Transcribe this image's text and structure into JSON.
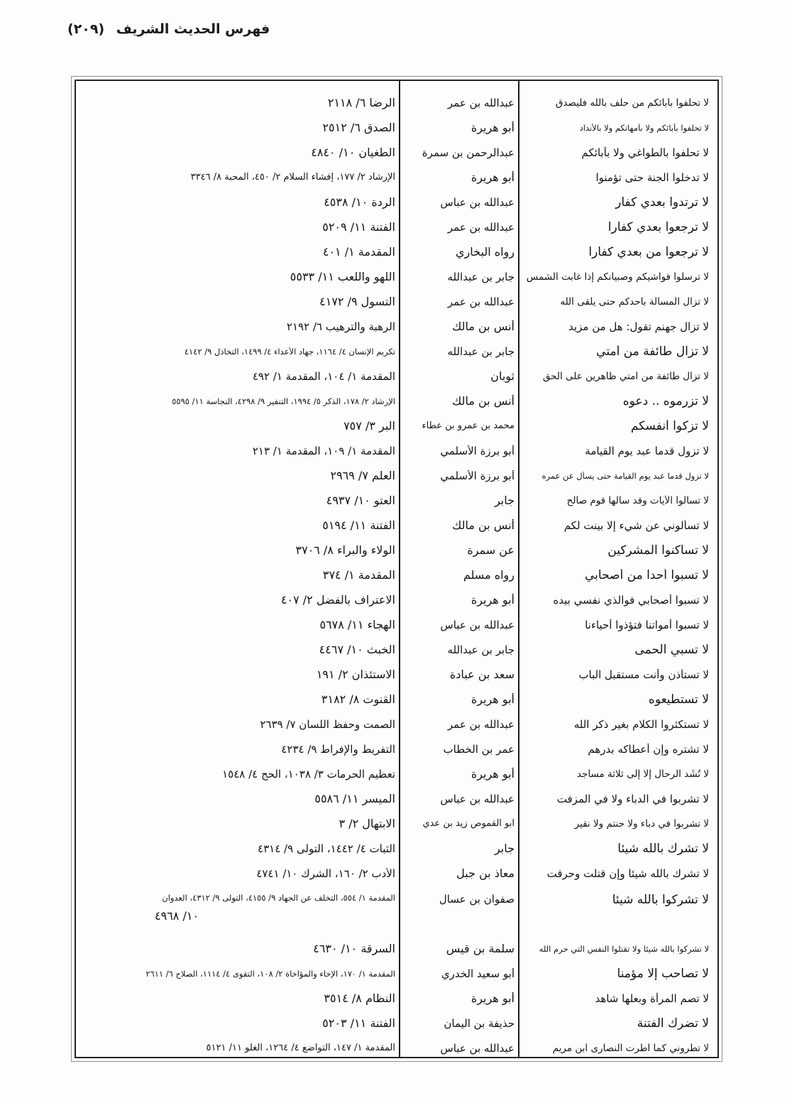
{
  "page_header": {
    "title": "فهرس الحديث الشريف",
    "page_number": "(٢٠٩)"
  },
  "table": {
    "rows": [
      {
        "hadith": "لا تحلفوا بآبائكم من حلف بالله فليصدق",
        "narrator": "عبدالله بن عمر",
        "reference": "الرضا ٦/ ٢١١٨"
      },
      {
        "hadith": "لا تحلفوا بآبائكم ولا بأمهاتكم ولا بالأنداد",
        "narrator": "أبو هريرة",
        "reference": "الصدق ٦/ ٢٥١٢"
      },
      {
        "hadith": "لا تحلفوا بالطواغي ولا بآبائكم",
        "narrator": "عبدالرحمن بن سمرة",
        "reference": "الطغيان ١٠/ ٤٨٤٠"
      },
      {
        "hadith": "لا تدخلوا الجنة حتى تؤمنوا",
        "narrator": "أبو هريرة",
        "reference": "الإرشاد ٢/ ١٧٧، إفشاء السلام ٢/ ٤٥٠، المحبة ٨/ ٣٣٤٦"
      },
      {
        "hadith": "لا ترتدوا بعدي كفار",
        "narrator": "عبدالله بن عباس",
        "reference": "الردة ١٠/ ٤٥٣٨"
      },
      {
        "hadith": "لا ترجعوا بعدي كفارا",
        "narrator": "عبدالله بن عمر",
        "reference": "الفتنة ١١/ ٥٢٠٩"
      },
      {
        "hadith": "لا ترجعوا من بعدي كفارا",
        "narrator": "رواه البخاري",
        "reference": "المقدمة ١/ ٤٠١"
      },
      {
        "hadith": "لا ترسلوا فواشيكم وصبيانكم إذا غابت الشمس",
        "narrator": "جابر بن عبدالله",
        "reference": "اللهو واللعب ١١/ ٥٥٣٣"
      },
      {
        "hadith": "لا تزال المسألة بأحدكم حتى يلقى الله",
        "narrator": "عبدالله بن عمر",
        "reference": "التسول ٩/ ٤١٧٢"
      },
      {
        "hadith": "لا تزال جهنم تقول: هل من مزيد",
        "narrator": "أنس بن مالك",
        "reference": "الرهبة والترهيب ٦/ ٢١٩٢"
      },
      {
        "hadith": "لا تزال طائفة من أمتي",
        "narrator": "جابر بن عبدالله",
        "reference": "تكريم الإنسان ٤/ ١١٦٤، جهاد الأعداء ٤/ ١٤٩٩، التخاذل ٩/ ٤١٤٢"
      },
      {
        "hadith": "لا تزال طائفة من أمتي ظاهرين على الحق",
        "narrator": "ثوبان",
        "reference": "المقدمة ١/ ١٠٤، المقدمة ١/ ٤٩٢"
      },
      {
        "hadith": "لا تزرموه .. دعوه",
        "narrator": "أنس بن مالك",
        "reference": "الإرشاد ٢/ ١٧٨، الذكر ٥/ ١٩٩٤، التنفير ٩/ ٤٢٩٨، النجاسة ١١/ ٥٥٩٥"
      },
      {
        "hadith": "لا تزكوا أنفسكم",
        "narrator": "محمد بن عمرو بن عطاء",
        "reference": "البر ٣/ ٧٥٧"
      },
      {
        "hadith": "لا تزول قدما عبد يوم القيامة",
        "narrator": "أبو برزة الأسلمي",
        "reference": "المقدمة ١/ ١٠٩، المقدمة ١/ ٢١٣"
      },
      {
        "hadith": "لا تزول قدما عبد يوم القيامة حتى يسأل عن عمره",
        "narrator": "أبو برزة الأسلمي",
        "reference": "العلم ٧/ ٢٩٦٩"
      },
      {
        "hadith": "لا تسألوا الآيات وقد سألها قوم صالح",
        "narrator": "جابر",
        "reference": "العتو ١٠/ ٤٩٣٧"
      },
      {
        "hadith": "لا تسألوني عن شيء إلا بينت لكم",
        "narrator": "أنس بن مالك",
        "reference": "الفتنة ١١/ ٥١٩٤"
      },
      {
        "hadith": "لا تساكنوا المشركين",
        "narrator": "عن سمرة",
        "reference": "الولاء والبراء ٨/ ٣٧٠٦"
      },
      {
        "hadith": "لا تسبوا أحدا من أصحابي",
        "narrator": "رواه مسلم",
        "reference": "المقدمة ١/ ٣٧٤"
      },
      {
        "hadith": "لا تسبوا أصحابي فوالذي نفسي بيده",
        "narrator": "أبو هريرة",
        "reference": "الاعتراف بالفضل ٢/ ٤٠٧"
      },
      {
        "hadith": "لا تسبوا أمواتنا فتؤذوا أحياءنا",
        "narrator": "عبدالله بن عباس",
        "reference": "الهجاء ١١/ ٥٦٧٨"
      },
      {
        "hadith": "لا تسبي الحمى",
        "narrator": "جابر بن عبدالله",
        "reference": "الخبث ١٠/ ٤٤٦٧"
      },
      {
        "hadith": "لا تستأذن وأنت مستقبل الباب",
        "narrator": "سعد بن عبادة",
        "reference": "الاستئذان ٢/ ١٩١"
      },
      {
        "hadith": "لا تستطيعوه",
        "narrator": "أبو هريرة",
        "reference": "القنوت ٨/ ٣١٨٢"
      },
      {
        "hadith": "لا تستكثروا الكلام بغير ذكر الله",
        "narrator": "عبدالله بن عمر",
        "reference": "الصمت وحفظ اللسان ٧/ ٢٦٣٩"
      },
      {
        "hadith": "لا تشتره وإن أعطاكه بدرهم",
        "narrator": "عمر بن الخطاب",
        "reference": "التفريط والإفراط ٩/ ٤٢٣٤"
      },
      {
        "hadith": "لا تُشَد الرحال إلا إلى ثلاثة مساجد",
        "narrator": "أبو هريرة",
        "reference": "تعظيم الحرمات ٣/ ١٠٣٨، الحج ٤/ ١٥٤٨"
      },
      {
        "hadith": "لا تشربوا في الدباء ولا في المزفت",
        "narrator": "عبدالله بن عباس",
        "reference": "الميسر ١١/ ٥٥٨٦"
      },
      {
        "hadith": "لا تشربوا في دباء ولا حنتم ولا نقير",
        "narrator": "أبو القموص زيد بن عدي",
        "reference": "الابتهال ٢/ ٣"
      },
      {
        "hadith": "لا تشرك بالله شيئا",
        "narrator": "جابر",
        "reference": "الثبات ٤/ ١٤٤٢، التولى ٩/ ٤٣١٤"
      },
      {
        "hadith": "لا تشرك بالله شيئا وإن قتلت وحرقت",
        "narrator": "معاذ بن جبل",
        "reference": "الأدب ٢/ ١٦٠، الشرك ١٠/ ٤٧٤١"
      },
      {
        "hadith": "لا تشركوا بالله شيئا",
        "narrator": "صفوان بن عسال",
        "reference": "المقدمة ١/ ٥٥٤، التخلف عن الجهاد ٩/ ٤١٥٥، التولى ٩/ ٤٣١٢، العدوان",
        "reference_continuation": "١٠/ ٤٩٦٨"
      },
      {
        "hadith": "لا تشركوا بالله شيئا ولا تقتلوا النفس التي حرم الله",
        "narrator": "سلمة بن قيس",
        "reference": "السرقة ١٠/ ٤٦٣٠"
      },
      {
        "hadith": "لا تصاحب إلا مؤمنا",
        "narrator": "أبو سعيد الخدري",
        "reference": "المقدمة ١/ ١٧٠، الإخاء والمؤاخاة ٢/ ١٠٨، التقوى ٤/ ١١١٤، الصلاح ٦/ ٢٦١١"
      },
      {
        "hadith": "لا تصم المرأة وبعلها شاهد",
        "narrator": "أبو هريرة",
        "reference": "النظام ٨/ ٣٥١٤"
      },
      {
        "hadith": "لا تضرك الفتنة",
        "narrator": "حذيفة بن اليمان",
        "reference": "الفتنة ١١/ ٥٢٠٣"
      },
      {
        "hadith": "لا تطروني كما أطرت النصارى ابن مريم",
        "narrator": "عبدالله بن عباس",
        "reference": "المقدمة ١/ ١٤٧، التواضع ٤/ ١٢٦٤، الغلو ١١/ ٥١٢١"
      }
    ]
  }
}
